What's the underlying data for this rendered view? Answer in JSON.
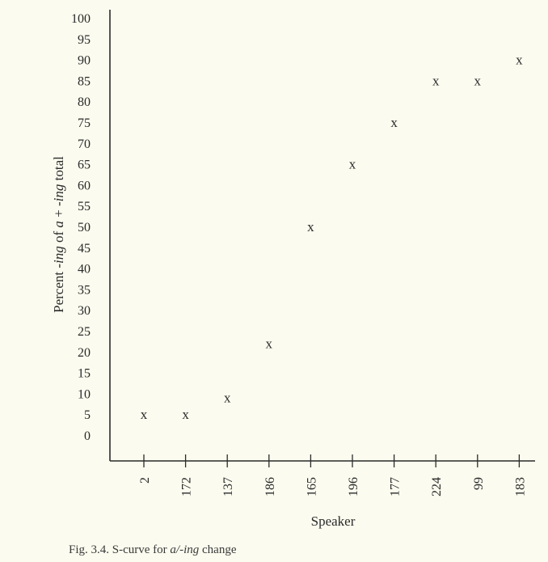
{
  "chart_data": {
    "type": "scatter",
    "categories": [
      "2",
      "172",
      "137",
      "186",
      "165",
      "196",
      "177",
      "224",
      "99",
      "183"
    ],
    "values": [
      5,
      5,
      9,
      22,
      50,
      65,
      75,
      85,
      85,
      90
    ],
    "marker": "x",
    "xlabel": "Speaker",
    "ylabel_parts": [
      "Percent ",
      "-ing",
      " of ",
      "a",
      " + ",
      "-ing",
      " total"
    ],
    "yticks": [
      0,
      5,
      10,
      15,
      20,
      25,
      30,
      35,
      40,
      45,
      50,
      55,
      60,
      65,
      70,
      75,
      80,
      85,
      90,
      95,
      100
    ],
    "ylim": [
      0,
      100
    ],
    "grid": false
  },
  "caption": {
    "prefix": "Fig. 3.4.  S-curve for ",
    "term": "a/-ing",
    "suffix": " change"
  },
  "colors": {
    "background": "#fbfbef",
    "ink": "#2a2a2a"
  }
}
